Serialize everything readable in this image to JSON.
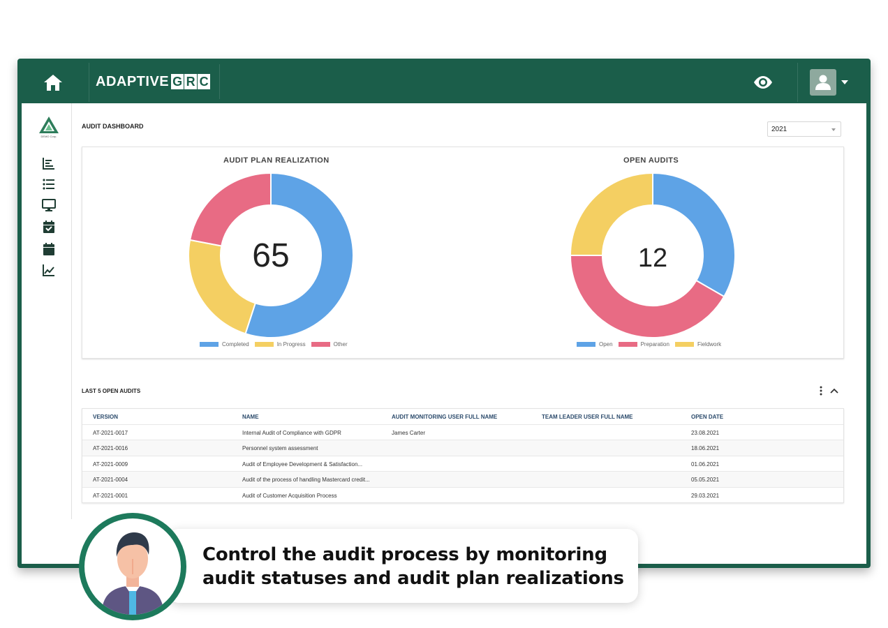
{
  "app": {
    "brand_word": "ADAPTIVE",
    "brand_letters": [
      "G",
      "R",
      "C"
    ],
    "home_icon": "home-icon",
    "eye_icon": "eye-icon",
    "user_icon": "user-avatar-icon"
  },
  "sidebar": {
    "org_name": "DEMO Corp.",
    "items": [
      {
        "icon": "bar-chart-icon"
      },
      {
        "icon": "list-icon"
      },
      {
        "icon": "monitor-icon"
      },
      {
        "icon": "calendar-check-icon"
      },
      {
        "icon": "calendar-icon"
      },
      {
        "icon": "line-chart-icon"
      }
    ]
  },
  "page": {
    "title": "AUDIT DASHBOARD",
    "year": "2021"
  },
  "chart_data": [
    {
      "type": "pie",
      "title": "AUDIT PLAN REALIZATION",
      "center_label": "65",
      "categories": [
        "Completed",
        "In Progress",
        "Other"
      ],
      "values": [
        55,
        23,
        22
      ],
      "colors": [
        "#5ea3e6",
        "#f4cf62",
        "#e86b84"
      ]
    },
    {
      "type": "pie",
      "title": "OPEN AUDITS",
      "center_label": "12",
      "categories": [
        "Open",
        "Preparation",
        "Fieldwork"
      ],
      "values": [
        4,
        5,
        3
      ],
      "colors": [
        "#5ea3e6",
        "#e86b84",
        "#f4cf62"
      ]
    }
  ],
  "table": {
    "title": "LAST 5 OPEN AUDITS",
    "columns": [
      "VERSION",
      "NAME",
      "AUDIT MONITORING USER FULL NAME",
      "TEAM LEADER USER FULL NAME",
      "OPEN DATE"
    ],
    "rows": [
      [
        "AT-2021-0017",
        "Internal Audit of Compliance with GDPR",
        "James Carter",
        "",
        "23.08.2021"
      ],
      [
        "AT-2021-0016",
        "Personnel system assessment",
        "",
        "",
        "18.06.2021"
      ],
      [
        "AT-2021-0009",
        "Audit of Employee Development & Satisfaction...",
        "",
        "",
        "01.06.2021"
      ],
      [
        "AT-2021-0004",
        "Audit of the process of handling Mastercard credit...",
        "",
        "",
        "05.05.2021"
      ],
      [
        "AT-2021-0001",
        "Audit of Customer Acquisition Process",
        "",
        "",
        "29.03.2021"
      ]
    ]
  },
  "callout": {
    "line1": "Control the audit process by monitoring",
    "line2": "audit statuses and audit plan realizations"
  }
}
